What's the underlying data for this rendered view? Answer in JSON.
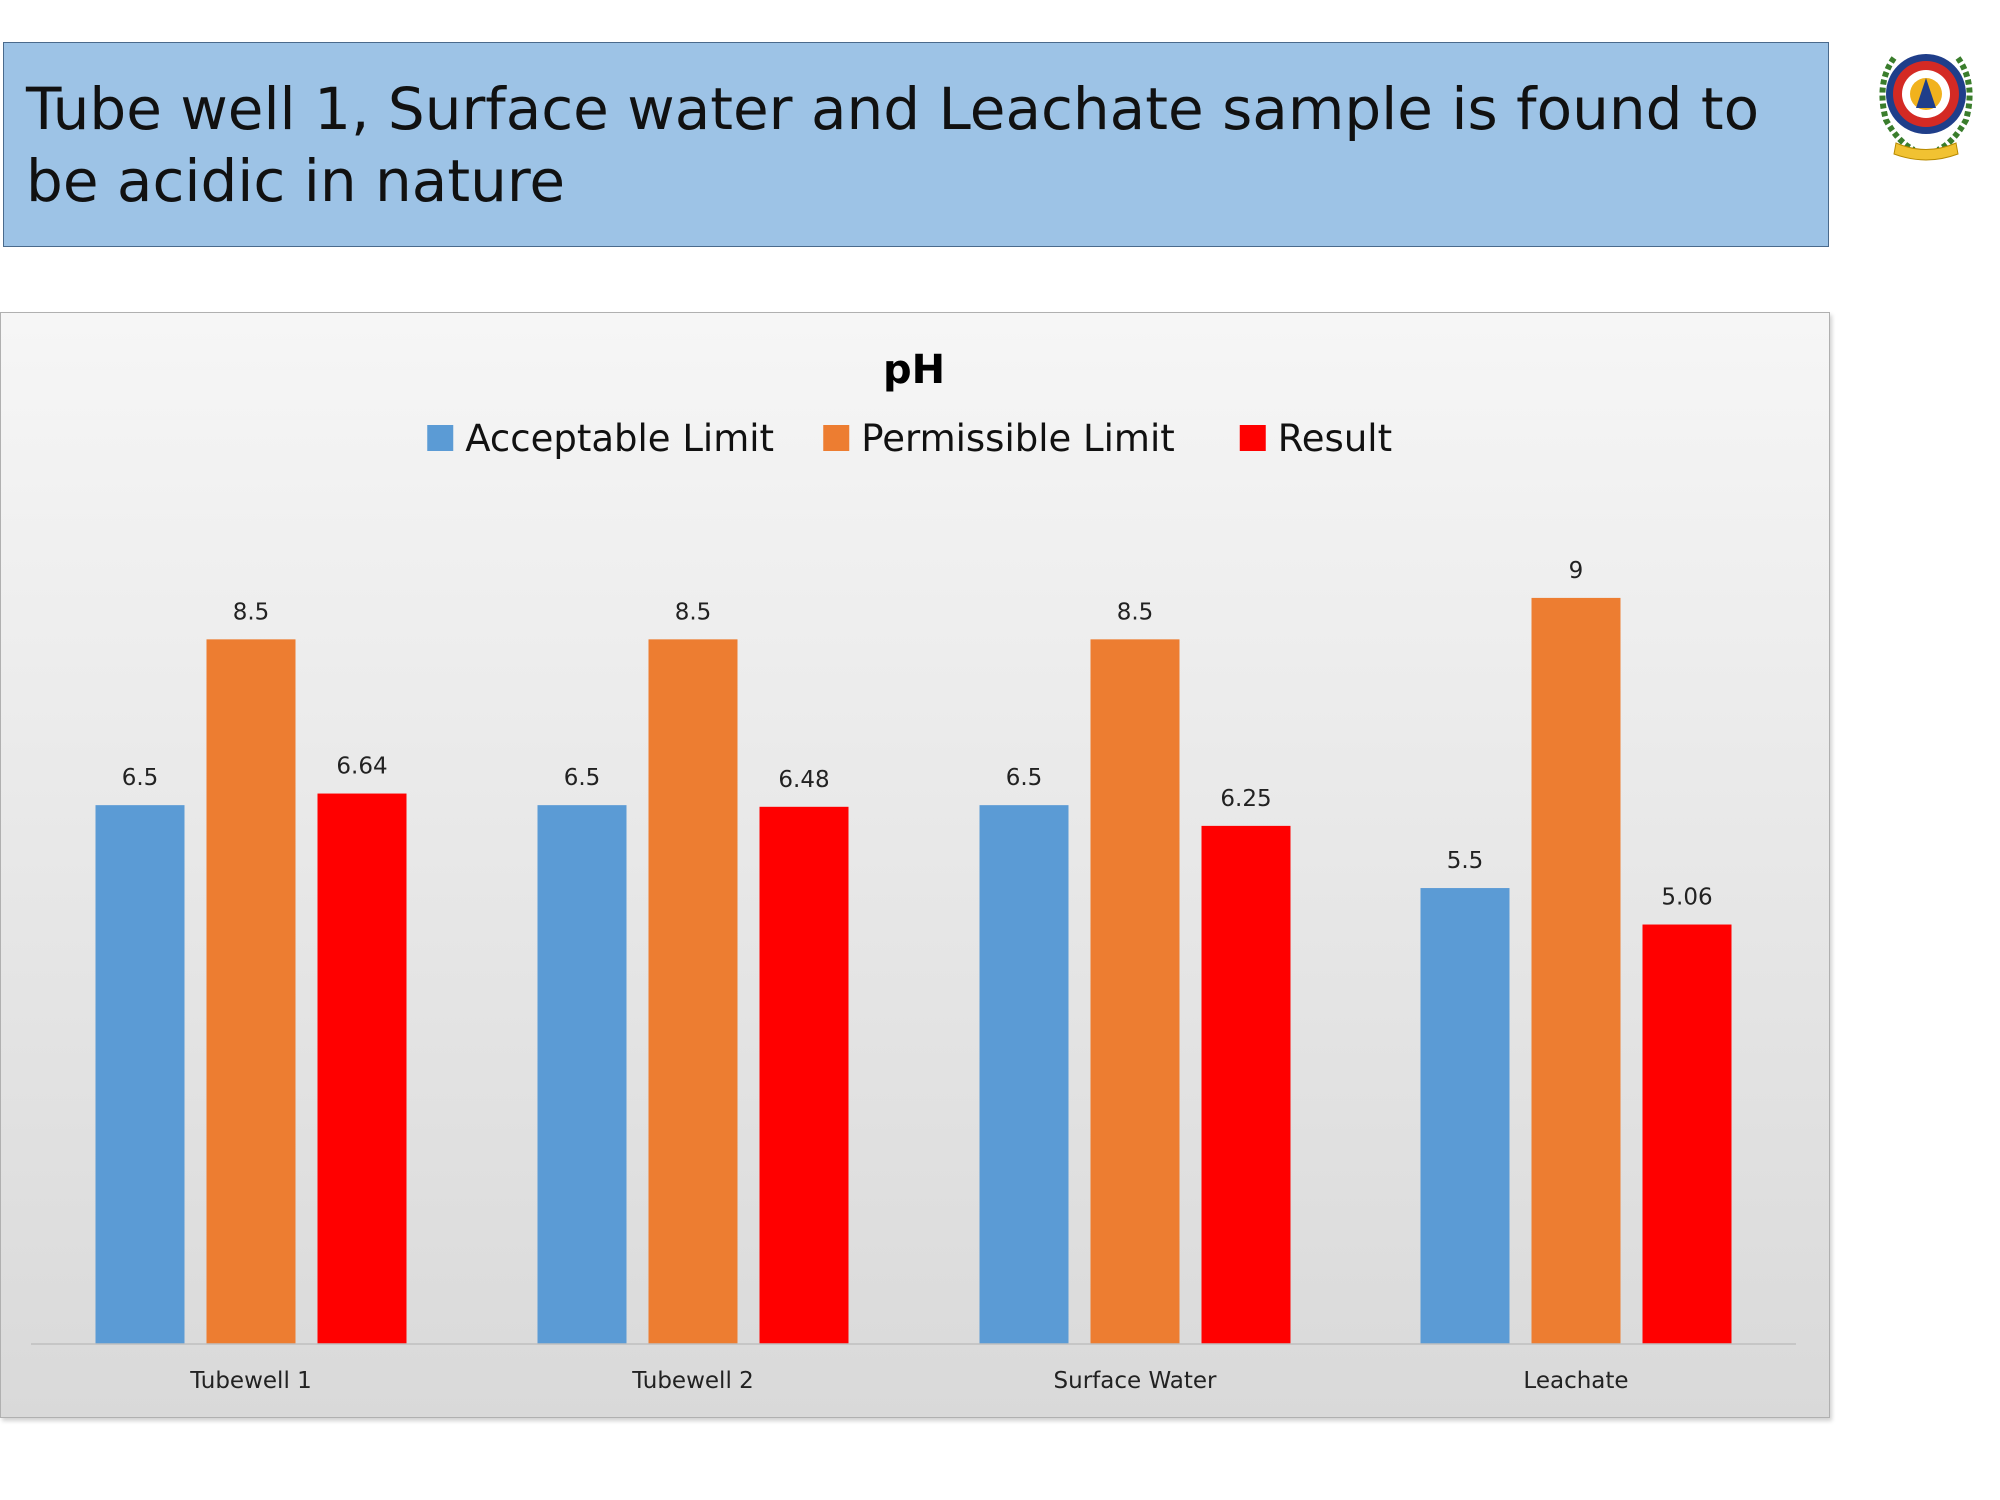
{
  "slide": {
    "title": "Tube well 1, Surface water and Leachate sample is found to be acidic in nature"
  },
  "logo": {
    "icon": "college-emblem-icon"
  },
  "chart_data": {
    "type": "bar",
    "title": "pH",
    "xlabel": "",
    "ylabel": "",
    "categories": [
      "Tubewell 1",
      "Tubewell 2",
      "Surface Water",
      "Leachate"
    ],
    "series": [
      {
        "name": "Acceptable Limit",
        "color": "#5b9bd5",
        "values": [
          6.5,
          6.5,
          6.5,
          5.5
        ]
      },
      {
        "name": "Permissible Limit",
        "color": "#ed7d31",
        "values": [
          8.5,
          8.5,
          8.5,
          9
        ]
      },
      {
        "name": "Result",
        "color": "#ff0000",
        "values": [
          6.64,
          6.48,
          6.25,
          5.06
        ]
      }
    ],
    "ylim": [
      0,
      9
    ],
    "legend_position": "top",
    "grid": false,
    "data_labels": true
  }
}
